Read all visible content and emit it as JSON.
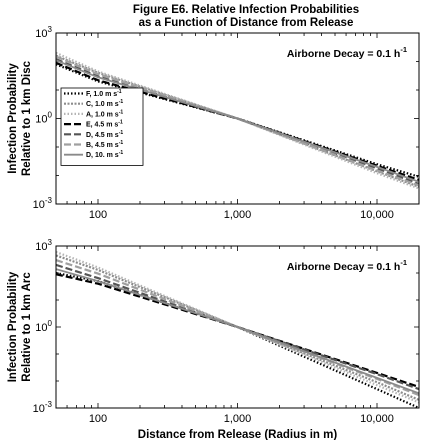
{
  "figure": {
    "title_line1": "Figure E6. Relative Infection Probabilities",
    "title_line2": "as a Function of Distance from Release"
  },
  "chart_data": [
    {
      "type": "line",
      "xscale": "log",
      "yscale": "log",
      "xlim": [
        50,
        20000
      ],
      "ylim": [
        0.001,
        1000
      ],
      "xticks": [
        100,
        1000,
        10000
      ],
      "xtick_labels": [
        "100",
        "1,000",
        "10,000"
      ],
      "ytick_labels": [
        "10^-3",
        "10^0",
        "10^3"
      ],
      "ylabel_line1": "Infection Probability",
      "ylabel_line2": "Relative to 1 km Disc",
      "xlabel": "",
      "annotation": "Airborne Decay = 0.1 h",
      "annotation_sup": "-1",
      "legend_position": "left",
      "series": [
        {
          "name": "F, 1.0 m s",
          "color": "#000000",
          "dash": "1.5,2",
          "width": 2.2,
          "x": [
            50,
            100,
            1000,
            10000,
            20000
          ],
          "y": [
            80,
            20,
            1,
            0.025,
            0.009
          ]
        },
        {
          "name": "C, 1.0 m s",
          "color": "#8c8c8c",
          "dash": "2,1.5",
          "width": 2.2,
          "x": [
            50,
            100,
            1000,
            10000,
            20000
          ],
          "y": [
            160,
            40,
            1,
            0.014,
            0.004
          ]
        },
        {
          "name": "A, 1.0 m s",
          "color": "#b4b4b4",
          "dash": "1.5,2",
          "width": 2.2,
          "x": [
            50,
            100,
            1000,
            10000,
            20000
          ],
          "y": [
            200,
            45,
            1,
            0.012,
            0.0035
          ]
        },
        {
          "name": "E, 4.5 m s",
          "color": "#000000",
          "dash": "7,3",
          "width": 2.2,
          "x": [
            50,
            100,
            1000,
            10000,
            20000
          ],
          "y": [
            90,
            22,
            1,
            0.022,
            0.007
          ]
        },
        {
          "name": "D, 4.5 m s",
          "color": "#555555",
          "dash": "7,3",
          "width": 2.2,
          "x": [
            50,
            100,
            1000,
            10000,
            20000
          ],
          "y": [
            120,
            30,
            1,
            0.018,
            0.005
          ]
        },
        {
          "name": "B, 4.5 m s",
          "color": "#a0a0a0",
          "dash": "7,3",
          "width": 2.2,
          "x": [
            50,
            100,
            1000,
            10000,
            20000
          ],
          "y": [
            150,
            36,
            1,
            0.015,
            0.0045
          ]
        },
        {
          "name": "D, 10. m s",
          "color": "#8a8a8a",
          "dash": "",
          "width": 1.8,
          "x": [
            50,
            100,
            1000,
            10000,
            20000
          ],
          "y": [
            110,
            28,
            1,
            0.02,
            0.006
          ]
        }
      ]
    },
    {
      "type": "line",
      "xscale": "log",
      "yscale": "log",
      "xlim": [
        50,
        20000
      ],
      "ylim": [
        0.001,
        1000
      ],
      "xticks": [
        100,
        1000,
        10000
      ],
      "xtick_labels": [
        "100",
        "1,000",
        "10,000"
      ],
      "ytick_labels": [
        "10^-3",
        "10^0",
        "10^3"
      ],
      "ylabel_line1": "Infection Probability",
      "ylabel_line2": "Relative to 1 km Arc",
      "xlabel": "Distance from Release (Radius in m)",
      "annotation": "Airborne Decay = 0.1 h",
      "annotation_sup": "-1",
      "series": [
        {
          "name": "F, 1.0 m s",
          "color": "#000000",
          "dash": "1.5,2",
          "width": 2.2,
          "x": [
            50,
            100,
            1000,
            10000,
            20000
          ],
          "y": [
            100,
            50,
            1,
            0.005,
            0.001
          ]
        },
        {
          "name": "C, 1.0 m s",
          "color": "#8c8c8c",
          "dash": "2,1.5",
          "width": 2.2,
          "x": [
            50,
            100,
            1000,
            10000,
            20000
          ],
          "y": [
            450,
            130,
            1,
            0.009,
            0.002
          ]
        },
        {
          "name": "A, 1.0 m s",
          "color": "#b4b4b4",
          "dash": "1.5,2",
          "width": 2.2,
          "x": [
            50,
            100,
            1000,
            10000,
            20000
          ],
          "y": [
            600,
            160,
            1,
            0.007,
            0.0016
          ]
        },
        {
          "name": "E, 4.5 m s",
          "color": "#000000",
          "dash": "7,3",
          "width": 2.2,
          "x": [
            50,
            100,
            1000,
            10000,
            20000
          ],
          "y": [
            90,
            40,
            1,
            0.02,
            0.006
          ]
        },
        {
          "name": "D, 4.5 m s",
          "color": "#555555",
          "dash": "7,3",
          "width": 2.2,
          "x": [
            50,
            100,
            1000,
            10000,
            20000
          ],
          "y": [
            200,
            65,
            1,
            0.018,
            0.005
          ]
        },
        {
          "name": "B, 4.5 m s",
          "color": "#a0a0a0",
          "dash": "7,3",
          "width": 2.2,
          "x": [
            50,
            100,
            1000,
            10000,
            20000
          ],
          "y": [
            300,
            95,
            1,
            0.012,
            0.003
          ]
        },
        {
          "name": "D, 10. m s",
          "color": "#8a8a8a",
          "dash": "",
          "width": 1.8,
          "x": [
            50,
            100,
            1000,
            10000,
            20000
          ],
          "y": [
            140,
            50,
            1,
            0.013,
            0.0035
          ]
        }
      ]
    }
  ]
}
